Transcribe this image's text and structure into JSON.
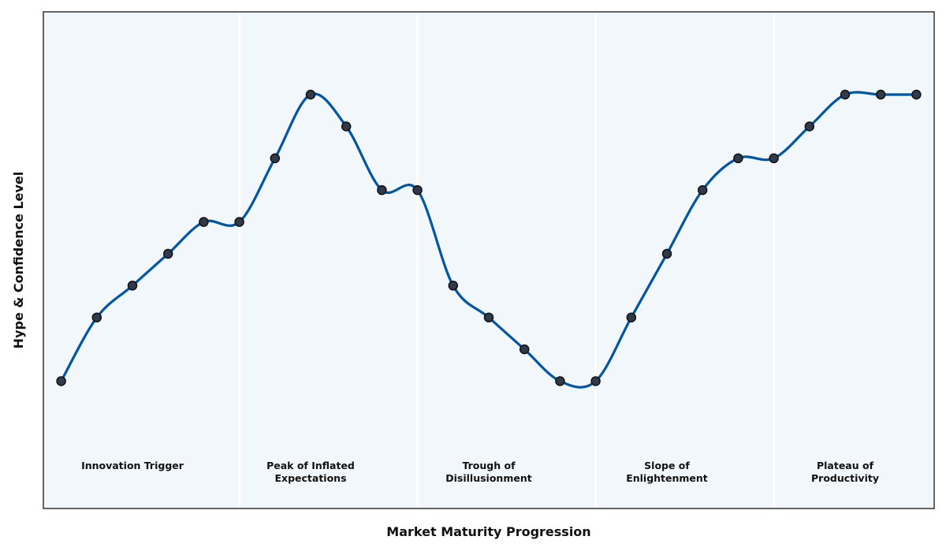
{
  "chart_data": {
    "type": "line",
    "title": "",
    "xlabel": "Market Maturity Progression",
    "ylabel": "Hype & Confidence Level",
    "x": [
      0,
      1,
      2,
      3,
      4,
      5,
      6,
      7,
      8,
      9,
      10,
      11,
      12,
      13,
      14,
      15,
      16,
      17,
      18,
      19,
      20,
      21,
      22,
      23,
      24
    ],
    "series": [
      {
        "values": [
          10,
          20,
          25,
          30,
          35,
          35,
          45,
          55,
          50,
          40,
          40,
          25,
          20,
          15,
          10,
          10,
          20,
          30,
          40,
          45,
          45,
          50,
          55,
          55,
          55
        ]
      }
    ],
    "xlim": [
      -0.5,
      24.5
    ],
    "ylim": [
      -10,
      68
    ],
    "phases": [
      {
        "label_lines": [
          "Innovation Trigger"
        ],
        "start": -0.5,
        "end": 5
      },
      {
        "label_lines": [
          "Peak of Inflated",
          "Expectations"
        ],
        "start": 5,
        "end": 10
      },
      {
        "label_lines": [
          "Trough of",
          "Disillusionment"
        ],
        "start": 10,
        "end": 15
      },
      {
        "label_lines": [
          "Slope of",
          "Enlightenment"
        ],
        "start": 15,
        "end": 20
      },
      {
        "label_lines": [
          "Plateau of",
          "Productivity"
        ],
        "start": 20,
        "end": 24.5
      }
    ],
    "grid": false,
    "colors": {
      "line": "#0055a4",
      "marker_fill": "#2f3a4a",
      "marker_edge": "#111111",
      "background": "#f2f7fc",
      "phase_divider": "#ffffff"
    }
  }
}
